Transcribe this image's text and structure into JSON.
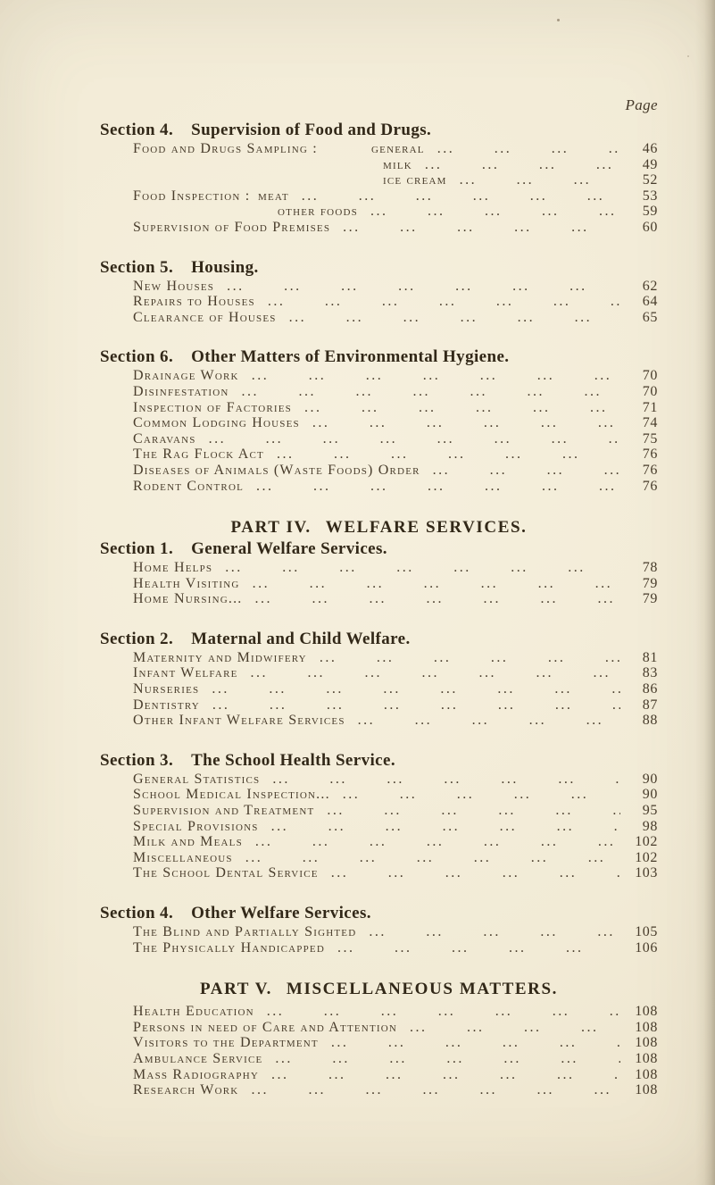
{
  "page": {
    "page_label": "Page",
    "paper_color": "#f2ebd6",
    "ink_color": "#483c2b",
    "heading_color": "#322818"
  },
  "toc": {
    "leader_group": "...",
    "leader_repeat": 16,
    "sections": [
      {
        "number": "Section 4.",
        "title": "Supervision of Food and Drugs.",
        "entries": [
          {
            "prefix": "Food and Drugs Sampling :",
            "group": "sampling",
            "label": "general",
            "page": "46"
          },
          {
            "label": "milk",
            "page": "49",
            "under": "sampling"
          },
          {
            "label": "ice cream",
            "page": "52",
            "under": "sampling"
          },
          {
            "prefix": "Food Inspection :",
            "group": "inspection",
            "label": "meat",
            "page": "53"
          },
          {
            "label": "other foods",
            "page": "59",
            "under": "inspection"
          },
          {
            "label": "Supervision of Food Premises",
            "page": "60"
          }
        ]
      },
      {
        "number": "Section 5.",
        "title": "Housing.",
        "entries": [
          {
            "label": "New Houses",
            "page": "62"
          },
          {
            "label": "Repairs to Houses",
            "page": "64"
          },
          {
            "label": "Clearance of Houses",
            "page": "65"
          }
        ]
      },
      {
        "number": "Section 6.",
        "title": "Other Matters of Environmental Hygiene.",
        "entries": [
          {
            "label": "Drainage Work",
            "page": "70"
          },
          {
            "label": "Disinfestation",
            "page": "70"
          },
          {
            "label": "Inspection of Factories",
            "page": "71"
          },
          {
            "label": "Common Lodging Houses",
            "page": "74"
          },
          {
            "label": "Caravans",
            "page": "75"
          },
          {
            "label": "The Rag Flock Act",
            "page": "76"
          },
          {
            "label": "Diseases of Animals (Waste Foods) Order",
            "page": "76"
          },
          {
            "label": "Rodent Control",
            "page": "76"
          }
        ]
      },
      {
        "part_number": "PART IV.",
        "part_title": "WELFARE SERVICES.",
        "number": "Section 1.",
        "title": "General Welfare Services.",
        "entries": [
          {
            "label": "Home Helps",
            "page": "78"
          },
          {
            "label": "Health Visiting",
            "page": "79"
          },
          {
            "label": "Home Nursing...",
            "page": "79"
          }
        ]
      },
      {
        "number": "Section 2.",
        "title": "Maternal and Child Welfare.",
        "entries": [
          {
            "label": "Maternity and Midwifery",
            "page": "81"
          },
          {
            "label": "Infant Welfare",
            "page": "83"
          },
          {
            "label": "Nurseries",
            "page": "86"
          },
          {
            "label": "Dentistry",
            "page": "87"
          },
          {
            "label": "Other Infant Welfare Services",
            "page": "88"
          }
        ]
      },
      {
        "number": "Section 3.",
        "title": "The School Health Service.",
        "entries": [
          {
            "label": "General Statistics",
            "page": "90"
          },
          {
            "label": "School Medical Inspection...",
            "page": "90"
          },
          {
            "label": "Supervision and Treatment",
            "page": "95"
          },
          {
            "label": "Special Provisions",
            "page": "98"
          },
          {
            "label": "Milk and Meals",
            "page": "102"
          },
          {
            "label": "Miscellaneous",
            "page": "102"
          },
          {
            "label": "The School Dental Service",
            "page": "103"
          }
        ]
      },
      {
        "number": "Section 4.",
        "title": "Other Welfare Services.",
        "entries": [
          {
            "label": "The Blind and Partially Sighted",
            "page": "105"
          },
          {
            "label": "The Physically Handicapped",
            "page": "106"
          }
        ]
      },
      {
        "part_number": "PART V.",
        "part_title": "MISCELLANEOUS MATTERS.",
        "entries": [
          {
            "label": "Health Education",
            "page": "108"
          },
          {
            "label": "Persons in need of Care and Attention",
            "page": "108"
          },
          {
            "label": "Visitors to the Department",
            "page": "108"
          },
          {
            "label": "Ambulance Service",
            "page": "108"
          },
          {
            "label": "Mass Radiography",
            "page": "108"
          },
          {
            "label": "Research Work",
            "page": "108"
          }
        ]
      }
    ]
  }
}
